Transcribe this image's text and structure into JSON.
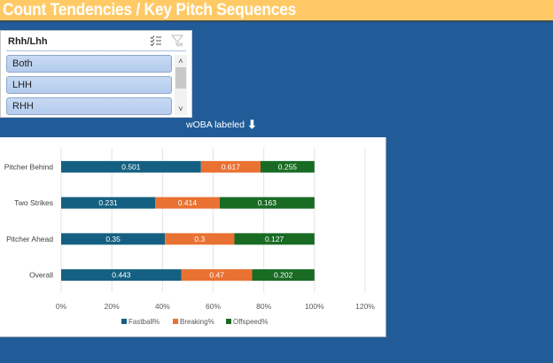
{
  "banner": {
    "title": "Count Tendencies / Key Pitch Sequences",
    "background_color": "#FFCA66"
  },
  "slicer": {
    "title": "Rhh/Lhh",
    "multi_select_icon": "multi-select-icon",
    "clear_filter_icon": "clear-filter-icon",
    "items": [
      {
        "label": "Both",
        "selected": true
      },
      {
        "label": "LHH",
        "selected": true
      },
      {
        "label": "RHH",
        "selected": true
      }
    ]
  },
  "annotation": {
    "text": "wOBA labeled",
    "icon": "arrow-down-icon",
    "glyph": "⬇"
  },
  "chart_data": {
    "type": "bar",
    "orientation": "horizontal",
    "stacked": "percent",
    "title": "",
    "xlabel": "",
    "ylabel": "",
    "categories": [
      "Pitcher Behind",
      "Two Strikes",
      "Pitcher Ahead",
      "Overall"
    ],
    "series": [
      {
        "name": "Fastball%",
        "color": "#156082",
        "values": [
          55.2,
          37.1,
          41.0,
          47.5
        ],
        "data_labels": [
          "0.501",
          "0.231",
          "0.35",
          "0.443"
        ]
      },
      {
        "name": "Breaking%",
        "color": "#E97132",
        "values": [
          23.5,
          25.5,
          27.4,
          27.9
        ],
        "data_labels": [
          "0.617",
          "0.414",
          "0.3",
          "0.47"
        ]
      },
      {
        "name": "Offspeed%",
        "color": "#196B24",
        "values": [
          21.3,
          37.4,
          31.6,
          24.6
        ],
        "data_labels": [
          "0.255",
          "0.163",
          "0.127",
          "0.202"
        ]
      }
    ],
    "xlim": [
      0,
      120
    ],
    "x_ticks": [
      "0%",
      "20%",
      "40%",
      "60%",
      "80%",
      "100%",
      "120%"
    ],
    "grid": true,
    "legend": {
      "position": "bottom",
      "entries": [
        "Fastball%",
        "Breaking%",
        "Offspeed%"
      ]
    }
  }
}
